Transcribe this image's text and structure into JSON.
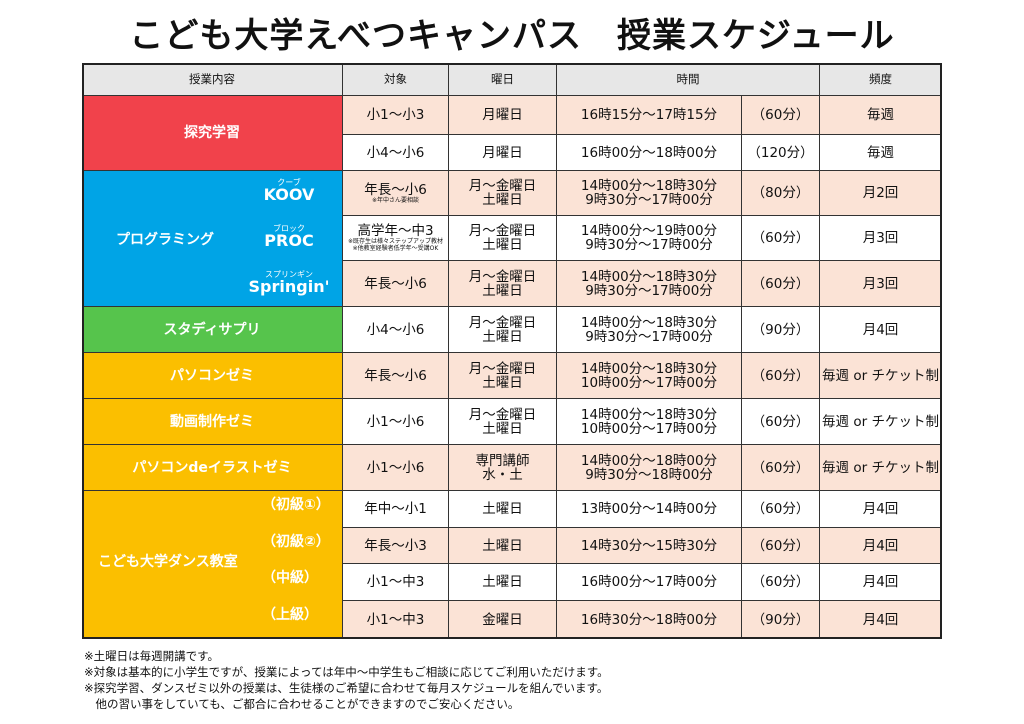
{
  "title": "こども大学えべつキャンパス　授業スケジュール",
  "headers": {
    "content": "授業内容",
    "target": "対象",
    "day": "曜日",
    "time": "時間",
    "frequency": "頻度"
  },
  "categories": {
    "tankyu": "探究学習",
    "programming": "プログラミング",
    "study_supple": "スタディサプリ",
    "pc_zemi": "パソコンゼミ",
    "douga_zemi": "動画制作ゼミ",
    "illust_zemi": "パソコンdeイラストゼミ",
    "dance": "こども大学ダンス教室"
  },
  "programming_subs": {
    "koov": {
      "ruby": "クーブ",
      "name": "KOOV"
    },
    "proc": {
      "ruby": "ブロック",
      "name": "PROC"
    },
    "springin": {
      "ruby": "スプリンギン",
      "name": "Springin'"
    }
  },
  "dance_levels": [
    "（初級①）",
    "（初級②）",
    "（中級）",
    "（上級）"
  ],
  "rows": [
    {
      "target": "小1～小3",
      "target_note": "",
      "day1": "月曜日",
      "day2": "",
      "time1": "16時15分～17時15分",
      "time2": "",
      "duration": "（60分）",
      "freq": "毎週"
    },
    {
      "target": "小4～小6",
      "target_note": "",
      "day1": "月曜日",
      "day2": "",
      "time1": "16時00分～18時00分",
      "time2": "",
      "duration": "（120分）",
      "freq": "毎週"
    },
    {
      "target": "年長～小6",
      "target_note": "※年中さん要相談",
      "day1": "月～金曜日",
      "day2": "土曜日",
      "time1": "14時00分～18時30分",
      "time2": "9時30分～17時00分",
      "duration": "（80分）",
      "freq": "月2回"
    },
    {
      "target": "高学年～中3",
      "target_note": "※既存生は様々ステップアップ教材\n※他教室経験者低学年～受講OK",
      "day1": "月～金曜日",
      "day2": "土曜日",
      "time1": "14時00分～19時00分",
      "time2": "9時30分～17時00分",
      "duration": "（60分）",
      "freq": "月3回"
    },
    {
      "target": "年長～小6",
      "target_note": "",
      "day1": "月～金曜日",
      "day2": "土曜日",
      "time1": "14時00分～18時30分",
      "time2": "9時30分～17時00分",
      "duration": "（60分）",
      "freq": "月3回"
    },
    {
      "target": "小4～小6",
      "target_note": "",
      "day1": "月～金曜日",
      "day2": "土曜日",
      "time1": "14時00分～18時30分",
      "time2": "9時30分～17時00分",
      "duration": "（90分）",
      "freq": "月4回"
    },
    {
      "target": "年長～小6",
      "target_note": "",
      "day1": "月～金曜日",
      "day2": "土曜日",
      "time1": "14時00分～18時30分",
      "time2": "10時00分～17時00分",
      "duration": "（60分）",
      "freq": "毎週 or チケット制"
    },
    {
      "target": "小1～小6",
      "target_note": "",
      "day1": "月～金曜日",
      "day2": "土曜日",
      "time1": "14時00分～18時30分",
      "time2": "10時00分～17時00分",
      "duration": "（60分）",
      "freq": "毎週 or チケット制"
    },
    {
      "target": "小1～小6",
      "target_note": "",
      "day1": "専門講師",
      "day2": "水・土",
      "time1": "14時00分～18時00分",
      "time2": "9時30分～18時00分",
      "duration": "（60分）",
      "freq": "毎週 or チケット制"
    },
    {
      "target": "年中～小1",
      "target_note": "",
      "day1": "土曜日",
      "day2": "",
      "time1": "13時00分～14時00分",
      "time2": "",
      "duration": "（60分）",
      "freq": "月4回"
    },
    {
      "target": "年長～小3",
      "target_note": "",
      "day1": "土曜日",
      "day2": "",
      "time1": "14時30分～15時30分",
      "time2": "",
      "duration": "（60分）",
      "freq": "月4回"
    },
    {
      "target": "小1～中3",
      "target_note": "",
      "day1": "土曜日",
      "day2": "",
      "time1": "16時00分～17時00分",
      "time2": "",
      "duration": "（60分）",
      "freq": "月4回"
    },
    {
      "target": "小1～中3",
      "target_note": "",
      "day1": "金曜日",
      "day2": "",
      "time1": "16時30分～18時00分",
      "time2": "",
      "duration": "（90分）",
      "freq": "月4回"
    }
  ],
  "notes": [
    "※土曜日は毎週開講です。",
    "※対象は基本的に小学生ですが、授業によっては年中～中学生もご相談に応じてご利用いただけます。",
    "※探究学習、ダンスゼミ以外の授業は、生徒様のご希望に合わせて毎月スケジュールを組んでいます。",
    "　他の習い事をしていても、ご都合に合わせることができますのでご安心ください。"
  ],
  "colors": {
    "red": "#f1424b",
    "blue": "#00a4e6",
    "green": "#56c44c",
    "yellow": "#fbbf00",
    "pink": "#fbe3d6",
    "header": "#e7e7e7"
  }
}
